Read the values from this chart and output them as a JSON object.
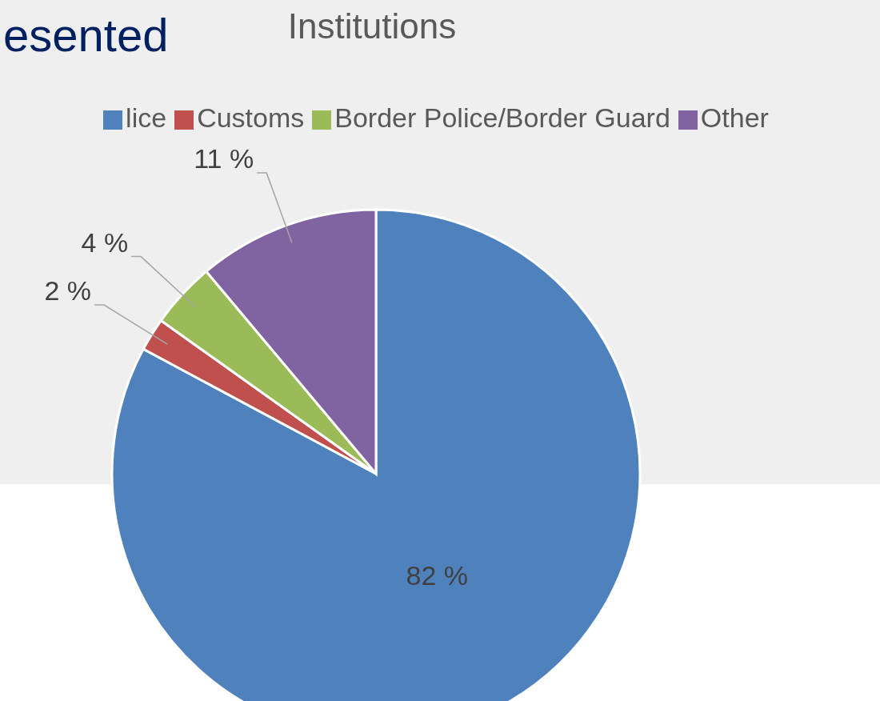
{
  "chart_data": {
    "type": "pie",
    "title": "Institutions",
    "annotations": [
      "esented"
    ],
    "categories": [
      "lice",
      "Customs",
      "Border Police/Border Guard",
      "Other"
    ],
    "values": [
      82,
      2,
      4,
      11
    ],
    "colors": [
      "#4f81bd",
      "#c0504d",
      "#9bbb59",
      "#8064a2"
    ],
    "value_labels": [
      "82 %",
      "2 %",
      "4 %",
      "11 %"
    ],
    "legend": "top"
  }
}
